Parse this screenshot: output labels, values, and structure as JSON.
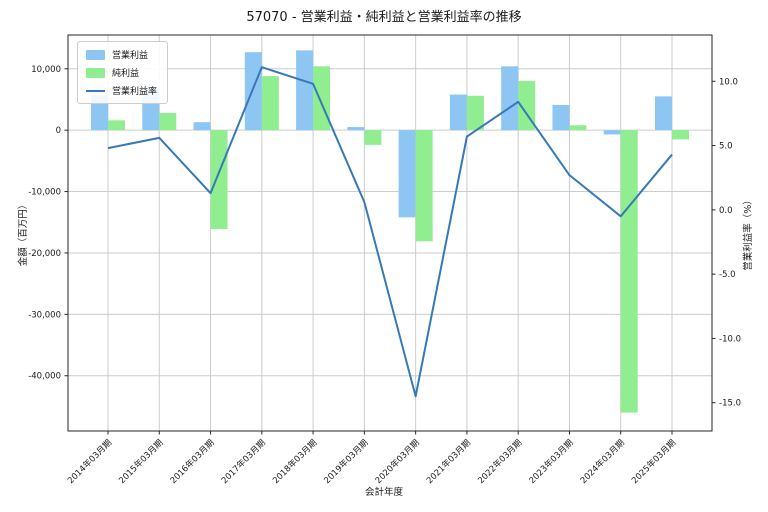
{
  "title": "57070 - 営業利益・純利益と営業利益率の推移",
  "axes": {
    "xlabel": "会計年度",
    "ylabel_left": "金額（百万円）",
    "ylabel_right": "営業利益率（%）",
    "ytick_left_labels": [
      "10,000",
      "0",
      "-10,000",
      "-20,000",
      "-30,000",
      "-40,000"
    ],
    "ytick_right_labels": [
      "10.0",
      "5.0",
      "0.0",
      "-5.0",
      "-10.0",
      "-15.0"
    ]
  },
  "legend": {
    "items": [
      "営業利益",
      "純利益",
      "営業利益率"
    ]
  },
  "colors": {
    "operating_profit_bar": "#8EC6F3",
    "net_profit_bar": "#90EE90",
    "margin_line": "#3679B6",
    "grid": "#cccccc",
    "spine": "#262626",
    "text": "#1a1a1a"
  },
  "chart_data": {
    "type": "bar",
    "subtype": "grouped-bars-with-line-overlay",
    "title": "57070 - 営業利益・純利益と営業利益率の推移",
    "xlabel": "会計年度",
    "ylabel_left": "金額（百万円）",
    "ylabel_right": "営業利益率（%）",
    "categories": [
      "2014年03月期",
      "2015年03月期",
      "2016年03月期",
      "2017年03月期",
      "2018年03月期",
      "2019年03月期",
      "2020年03月期",
      "2021年03月期",
      "2022年03月期",
      "2023年03月期",
      "2024年03月期",
      "2025年03月期"
    ],
    "series": [
      {
        "name": "営業利益",
        "type": "bar",
        "axis": "left",
        "color": "#8EC6F3",
        "values": [
          5700,
          6800,
          1300,
          12700,
          13000,
          500,
          -14200,
          5800,
          10400,
          4100,
          -700,
          5500
        ]
      },
      {
        "name": "純利益",
        "type": "bar",
        "axis": "left",
        "color": "#90EE90",
        "values": [
          1600,
          2800,
          -16100,
          8800,
          10400,
          -2400,
          -18100,
          5600,
          8000,
          800,
          -46000,
          -1500
        ]
      },
      {
        "name": "営業利益率",
        "type": "line",
        "axis": "right",
        "color": "#3679B6",
        "values": [
          4.8,
          5.6,
          1.3,
          11.1,
          9.8,
          0.6,
          -14.5,
          5.7,
          8.4,
          2.7,
          -0.5,
          4.3
        ]
      }
    ],
    "yticks_left": [
      10000,
      0,
      -10000,
      -20000,
      -30000,
      -40000
    ],
    "yticks_right": [
      10.0,
      5.0,
      0.0,
      -5.0,
      -10.0,
      -15.0
    ],
    "ylim_left": [
      -49000,
      15500
    ],
    "ylim_right": [
      -17.2,
      13.6
    ],
    "grid": true,
    "legend_position": "upper-left"
  }
}
